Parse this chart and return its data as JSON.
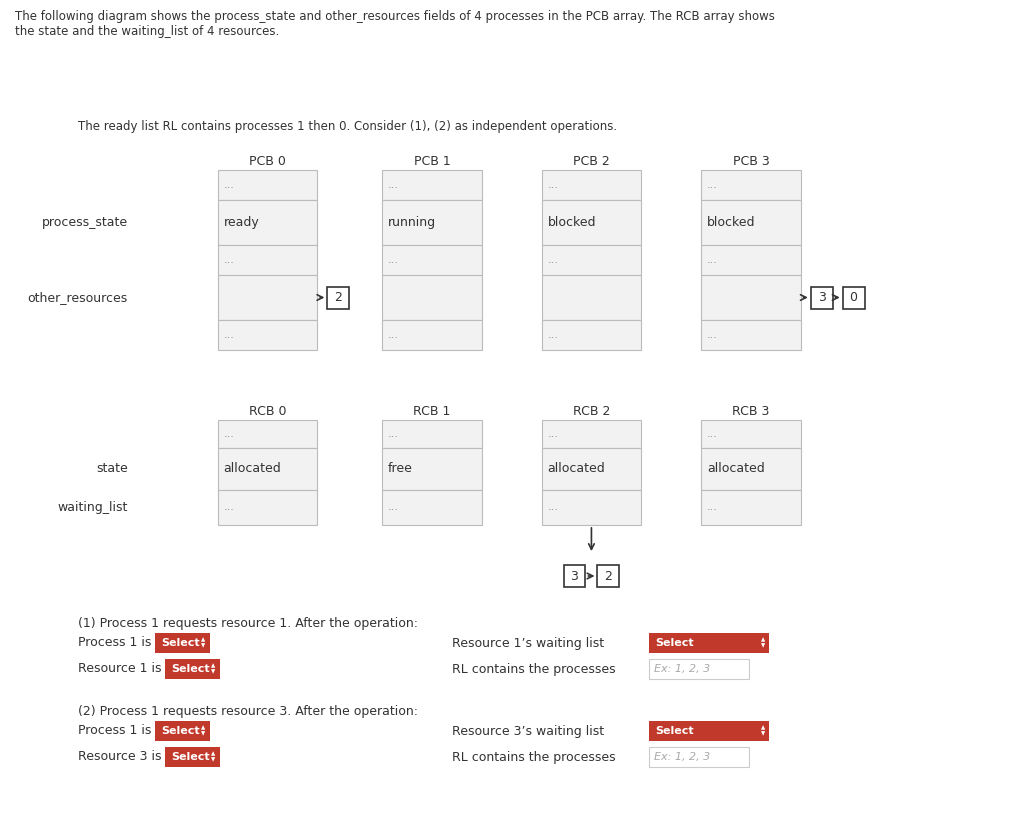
{
  "header_text": "The following diagram shows the process_state and other_resources fields of 4 processes in the PCB array. The RCB array shows\nthe state and the waiting_list of 4 resources.",
  "ready_list_text": "The ready list RL contains processes 1 then 0. Consider (1), (2) as independent operations.",
  "pcb_labels": [
    "PCB 0",
    "PCB 1",
    "PCB 2",
    "PCB 3"
  ],
  "rcb_labels": [
    "RCB 0",
    "RCB 1",
    "RCB 2",
    "RCB 3"
  ],
  "pcb_process_states": [
    "ready",
    "running",
    "blocked",
    "blocked"
  ],
  "rcb_states": [
    "allocated",
    "free",
    "allocated",
    "allocated"
  ],
  "row_label_process_state": "process_state",
  "row_label_other_resources": "other_resources",
  "row_label_state": "state",
  "row_label_waiting_list": "waiting_list",
  "question1": "(1) Process 1 requests resource 1. After the operation:",
  "q1_label1": "Process 1 is",
  "q1_label2": "Resource 1’s waiting list",
  "q1_label3": "Resource 1 is",
  "q1_label4": "RL contains the processes",
  "question2": "(2) Process 1 requests resource 3. After the operation:",
  "q2_label1": "Process 1 is",
  "q2_label2": "Resource 3’s waiting list",
  "q2_label3": "Resource 3 is",
  "q2_label4": "RL contains the processes",
  "select_bg": "#c0392b",
  "input_placeholder": "Ex: 1, 2, 3",
  "bg_color": "#ffffff",
  "text_color": "#333333"
}
